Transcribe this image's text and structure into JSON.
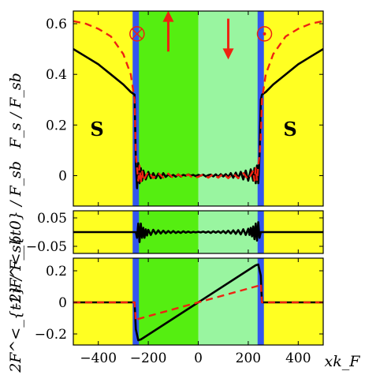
{
  "chart_data": [
    {
      "type": "line",
      "panel": "top",
      "ylabel": "F_s / F_sb",
      "ylim": [
        -0.12,
        0.65
      ],
      "xlim": [
        -500,
        500
      ],
      "yticks": [
        0,
        0.2,
        0.4,
        0.6
      ],
      "ytick_labels": [
        "0",
        "0.2",
        "0.4",
        "0.6"
      ],
      "region_labels": [
        "S",
        "S"
      ],
      "colors": {
        "s_region": "#ffff22",
        "left_half": "#55ee11",
        "right_half": "#99f5a0",
        "interface": "#3355ee",
        "solid": "#000000",
        "dashed": "#ee2211"
      },
      "interfaces_x": [
        -250,
        250
      ],
      "markers": [
        {
          "kind": "circle-cross",
          "x": -245,
          "y": 0.56
        },
        {
          "kind": "circle-dot",
          "x": 265,
          "y": 0.56
        }
      ],
      "arrows": [
        {
          "direction": "up",
          "x": -120,
          "y_from": 0.49,
          "y_to": 0.62
        },
        {
          "direction": "down",
          "x": 120,
          "y_from": 0.62,
          "y_to": 0.49
        }
      ],
      "series": [
        {
          "style": "solid",
          "x": [
            -500,
            -450,
            -400,
            -350,
            -300,
            -270,
            -255,
            -250,
            -245,
            -240,
            -235,
            -230,
            -225,
            -220,
            -210,
            -200,
            -190,
            -180,
            -170,
            -160,
            -150,
            -140,
            -130,
            -120,
            -110,
            -100,
            -90,
            -80,
            -70,
            -60,
            -50,
            -40,
            -30,
            -20,
            -10,
            0,
            10,
            20,
            30,
            40,
            50,
            60,
            70,
            80,
            90,
            100,
            110,
            120,
            130,
            140,
            150,
            160,
            170,
            180,
            190,
            200,
            210,
            220,
            225,
            230,
            235,
            240,
            245,
            250,
            255,
            270,
            300,
            350,
            400,
            450,
            500
          ],
          "y": [
            0.5,
            0.47,
            0.44,
            0.4,
            0.36,
            0.33,
            0.32,
            0.05,
            -0.05,
            0.05,
            -0.03,
            0.03,
            -0.02,
            0.02,
            -0.015,
            0.015,
            -0.01,
            0.01,
            -0.01,
            0.008,
            -0.01,
            0.01,
            -0.005,
            0.005,
            -0.003,
            0.003,
            -0.004,
            0.005,
            -0.003,
            0.003,
            0.0,
            0.005,
            0.0,
            0.003,
            -0.002,
            0.003,
            0.0,
            0.004,
            -0.003,
            0.002,
            0.004,
            -0.003,
            0.005,
            -0.004,
            0.006,
            -0.003,
            0.006,
            -0.005,
            0.01,
            -0.008,
            0.012,
            -0.01,
            0.015,
            -0.015,
            0.02,
            -0.02,
            0.025,
            -0.02,
            0.03,
            -0.03,
            0.04,
            -0.03,
            0.08,
            0.3,
            0.32,
            0.33,
            0.36,
            0.4,
            0.44,
            0.47,
            0.5
          ]
        },
        {
          "style": "dashed",
          "x": [
            -500,
            -450,
            -400,
            -350,
            -300,
            -270,
            -255,
            -250,
            -245,
            -240,
            -235,
            -230,
            -225,
            -220,
            -200,
            -180,
            -160,
            -140,
            -120,
            -100,
            -80,
            -60,
            -40,
            -20,
            0,
            20,
            40,
            60,
            80,
            100,
            120,
            140,
            160,
            180,
            200,
            220,
            225,
            230,
            235,
            240,
            245,
            250,
            255,
            270,
            300,
            350,
            400,
            450,
            500
          ],
          "y": [
            0.61,
            0.6,
            0.58,
            0.55,
            0.48,
            0.4,
            0.3,
            0.08,
            0.03,
            -0.02,
            0.04,
            -0.03,
            0.02,
            -0.02,
            0.015,
            -0.01,
            0.01,
            -0.008,
            0.008,
            -0.01,
            0.005,
            -0.008,
            0.005,
            -0.01,
            -0.005,
            0.005,
            -0.008,
            0.006,
            -0.008,
            0.008,
            -0.01,
            0.008,
            -0.01,
            0.01,
            -0.015,
            0.02,
            -0.02,
            0.03,
            -0.02,
            0.04,
            0.08,
            0.15,
            0.3,
            0.4,
            0.48,
            0.55,
            0.58,
            0.6,
            0.61
          ]
        }
      ]
    },
    {
      "type": "line",
      "panel": "middle",
      "ylabel": "-2iF^<_{t0} / F_sb",
      "ylim": [
        -0.075,
        0.075
      ],
      "xlim": [
        -500,
        500
      ],
      "yticks": [
        -0.05,
        0.05
      ],
      "ytick_labels": [
        "−0.05",
        "0.05"
      ],
      "series": [
        {
          "style": "solid",
          "x": [
            -500,
            -260,
            -250,
            -245,
            -240,
            -235,
            -230,
            -225,
            -220,
            -215,
            -210,
            -205,
            -200,
            -190,
            -180,
            -170,
            -160,
            -150,
            -140,
            -130,
            -120,
            -110,
            -100,
            -90,
            -80,
            -70,
            -60,
            -50,
            -40,
            -30,
            -20,
            -10,
            0,
            10,
            20,
            30,
            40,
            50,
            60,
            70,
            80,
            90,
            100,
            110,
            120,
            130,
            140,
            150,
            160,
            170,
            180,
            190,
            200,
            205,
            210,
            215,
            220,
            225,
            230,
            235,
            240,
            245,
            250,
            260,
            500
          ],
          "y": [
            0,
            0,
            0,
            -0.02,
            0.03,
            -0.035,
            0.03,
            -0.02,
            0.015,
            -0.02,
            0.01,
            -0.012,
            0.008,
            -0.01,
            0.008,
            -0.006,
            0.006,
            -0.005,
            0.005,
            -0.004,
            0.004,
            -0.003,
            0.004,
            -0.003,
            0.002,
            -0.003,
            0.003,
            -0.002,
            0.002,
            -0.002,
            0.001,
            -0.001,
            0.001,
            -0.001,
            0.002,
            -0.002,
            0.002,
            -0.003,
            0.003,
            -0.002,
            0.003,
            -0.003,
            0.004,
            -0.004,
            0.005,
            -0.005,
            0.006,
            -0.006,
            0.007,
            -0.008,
            0.01,
            -0.01,
            0.012,
            -0.01,
            0.015,
            -0.015,
            0.02,
            -0.025,
            0.03,
            -0.03,
            0.035,
            -0.02,
            0.0,
            0,
            0
          ]
        }
      ]
    },
    {
      "type": "line",
      "panel": "bottom",
      "ylabel": "2F^<_{t1} / F_sb",
      "xlabel": "xk_F",
      "ylim": [
        -0.27,
        0.28
      ],
      "xlim": [
        -500,
        500
      ],
      "xticks": [
        -400,
        -200,
        0,
        200,
        400
      ],
      "xtick_labels": [
        "−400",
        "−200",
        "0",
        "200",
        "400"
      ],
      "yticks": [
        -0.2,
        0,
        0.2
      ],
      "ytick_labels": [
        "−0.2",
        "0",
        "0.2"
      ],
      "series": [
        {
          "style": "solid",
          "x": [
            -500,
            -255,
            -250,
            -240,
            -230,
            -220,
            0,
            220,
            230,
            240,
            250,
            255,
            500
          ],
          "y": [
            0,
            0,
            -0.17,
            -0.24,
            -0.235,
            -0.225,
            0,
            0.225,
            0.235,
            0.24,
            0.17,
            0,
            0
          ]
        },
        {
          "style": "dashed",
          "x": [
            -500,
            -255,
            -250,
            -240,
            0,
            240,
            250,
            255,
            500
          ],
          "y": [
            0,
            0,
            -0.12,
            -0.105,
            0,
            0.105,
            0.12,
            0,
            0
          ]
        }
      ]
    }
  ]
}
